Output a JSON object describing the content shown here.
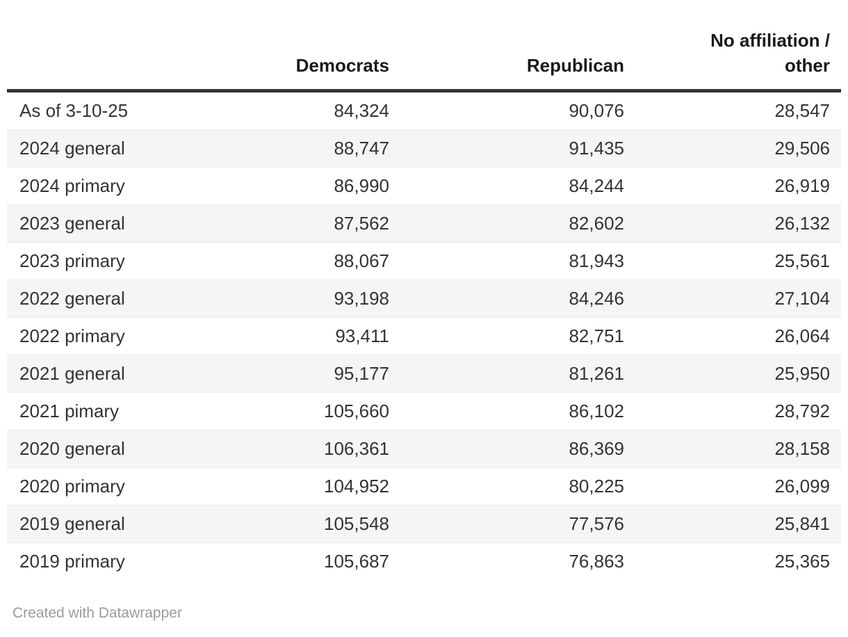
{
  "chart_data": {
    "type": "table",
    "columns": [
      "",
      "Democrats",
      "Republican",
      "No affiliation / other"
    ],
    "rows": [
      {
        "label": "As of 3-10-25",
        "values": [
          84324,
          90076,
          28547
        ],
        "formatted": [
          "84,324",
          "90,076",
          "28,547"
        ]
      },
      {
        "label": "2024 general",
        "values": [
          88747,
          91435,
          29506
        ],
        "formatted": [
          "88,747",
          "91,435",
          "29,506"
        ]
      },
      {
        "label": "2024 primary",
        "values": [
          86990,
          84244,
          26919
        ],
        "formatted": [
          "86,990",
          "84,244",
          "26,919"
        ]
      },
      {
        "label": "2023 general",
        "values": [
          87562,
          82602,
          26132
        ],
        "formatted": [
          "87,562",
          "82,602",
          "26,132"
        ]
      },
      {
        "label": "2023 primary",
        "values": [
          88067,
          81943,
          25561
        ],
        "formatted": [
          "88,067",
          "81,943",
          "25,561"
        ]
      },
      {
        "label": "2022 general",
        "values": [
          93198,
          84246,
          27104
        ],
        "formatted": [
          "93,198",
          "84,246",
          "27,104"
        ]
      },
      {
        "label": "2022 primary",
        "values": [
          93411,
          82751,
          26064
        ],
        "formatted": [
          "93,411",
          "82,751",
          "26,064"
        ]
      },
      {
        "label": "2021 general",
        "values": [
          95177,
          81261,
          25950
        ],
        "formatted": [
          "95,177",
          "81,261",
          "25,950"
        ]
      },
      {
        "label": "2021 pimary",
        "values": [
          105660,
          86102,
          28792
        ],
        "formatted": [
          "105,660",
          "86,102",
          "28,792"
        ]
      },
      {
        "label": "2020 general",
        "values": [
          106361,
          86369,
          28158
        ],
        "formatted": [
          "106,361",
          "86,369",
          "28,158"
        ]
      },
      {
        "label": "2020 primary",
        "values": [
          104952,
          80225,
          26099
        ],
        "formatted": [
          "104,952",
          "80,225",
          "26,099"
        ]
      },
      {
        "label": "2019 general",
        "values": [
          105548,
          77576,
          25841
        ],
        "formatted": [
          "105,548",
          "77,576",
          "25,841"
        ]
      },
      {
        "label": "2019 primary",
        "values": [
          105687,
          76863,
          25365
        ],
        "formatted": [
          "105,687",
          "76,863",
          "25,365"
        ]
      }
    ],
    "layout_hints": {
      "striped_rows": true,
      "header_rule": true,
      "number_alignment": "right"
    }
  },
  "footer": {
    "attribution": "Created with Datawrapper"
  },
  "colors": {
    "header_text": "#1a1a1a",
    "body_text": "#333333",
    "header_rule": "#333333",
    "row_stripe": "#f5f5f5",
    "row_border": "#ebebeb",
    "attribution_text": "#9b9b9b",
    "background": "#ffffff"
  }
}
